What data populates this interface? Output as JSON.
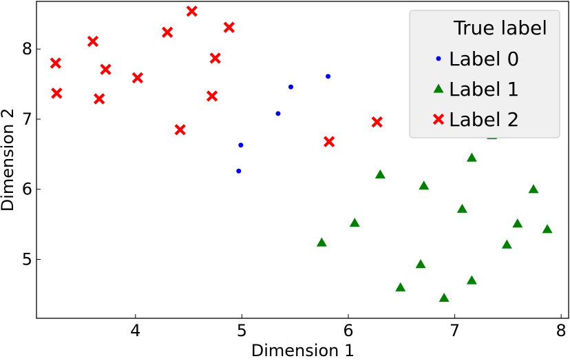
{
  "chart_data": {
    "type": "scatter",
    "xlabel": "Dimension 1",
    "ylabel": "Dimension 2",
    "xlim": [
      3.07,
      8.07
    ],
    "ylim": [
      4.16,
      8.68
    ],
    "xticks": [
      4,
      5,
      6,
      7,
      8
    ],
    "yticks": [
      5,
      6,
      7,
      8
    ],
    "grid": false,
    "legend": {
      "title": "True label",
      "placement": "top-right"
    },
    "series": [
      {
        "name": "Label 0",
        "marker": "circle",
        "color": "#0000ff",
        "points": [
          [
            5.46,
            7.46
          ],
          [
            5.81,
            7.61
          ],
          [
            5.34,
            7.08
          ],
          [
            4.99,
            6.63
          ],
          [
            4.97,
            6.26
          ]
        ]
      },
      {
        "name": "Label 1",
        "marker": "triangle",
        "color": "#008000",
        "points": [
          [
            7.35,
            6.77
          ],
          [
            7.16,
            6.45
          ],
          [
            6.3,
            6.21
          ],
          [
            6.71,
            6.05
          ],
          [
            7.74,
            6.0
          ],
          [
            7.07,
            5.72
          ],
          [
            6.06,
            5.52
          ],
          [
            7.59,
            5.51
          ],
          [
            7.87,
            5.43
          ],
          [
            5.75,
            5.24
          ],
          [
            7.49,
            5.21
          ],
          [
            6.68,
            4.93
          ],
          [
            7.16,
            4.7
          ],
          [
            6.49,
            4.6
          ],
          [
            6.9,
            4.45
          ]
        ]
      },
      {
        "name": "Label 2",
        "marker": "x",
        "color": "#ff0000",
        "points": [
          [
            4.53,
            8.54
          ],
          [
            4.88,
            8.31
          ],
          [
            4.3,
            8.24
          ],
          [
            3.6,
            8.11
          ],
          [
            4.75,
            7.87
          ],
          [
            3.25,
            7.8
          ],
          [
            3.72,
            7.71
          ],
          [
            4.02,
            7.59
          ],
          [
            3.26,
            7.37
          ],
          [
            4.72,
            7.33
          ],
          [
            3.66,
            7.29
          ],
          [
            6.27,
            6.96
          ],
          [
            4.42,
            6.85
          ],
          [
            5.82,
            6.68
          ]
        ]
      }
    ]
  }
}
